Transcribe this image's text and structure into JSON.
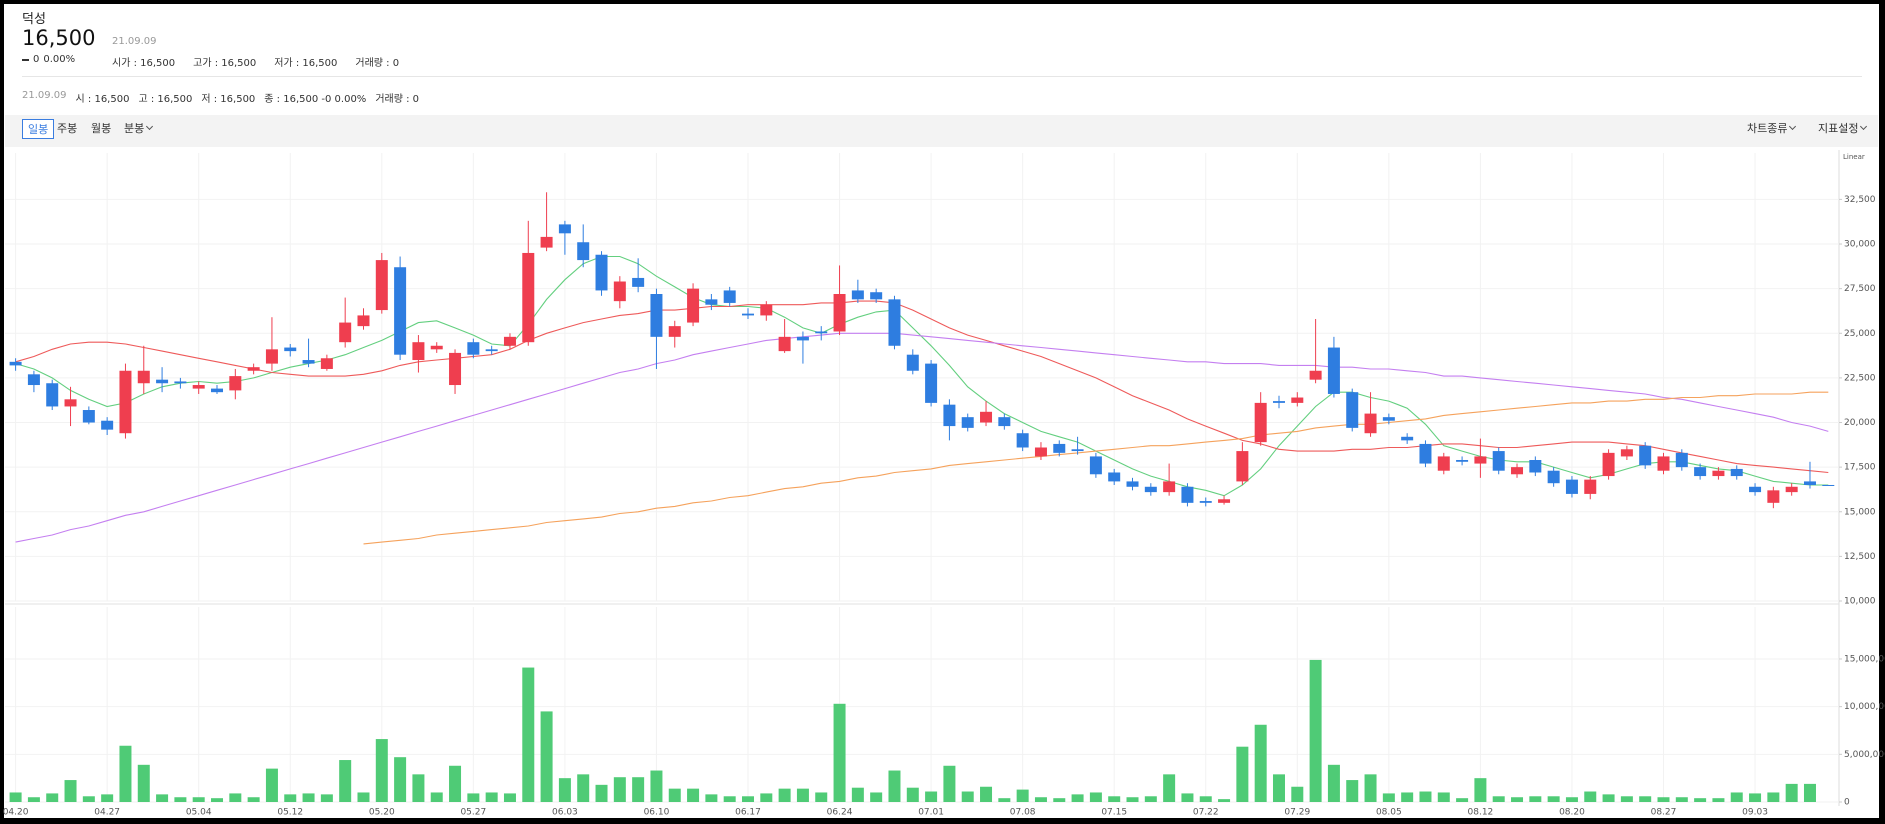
{
  "header": {
    "name": "덕성",
    "price": "16,500",
    "date": "21.09.09",
    "change": "0",
    "change_pct": "0.00%",
    "stats": [
      "시가 : 16,500",
      "고가 : 16,500",
      "저가 : 16,500",
      "거래량 : 0"
    ]
  },
  "info_bar": {
    "date": "21.09.09",
    "items": [
      "시 : 16,500",
      "고 : 16,500",
      "저 : 16,500",
      "종 : 16,500 -0 0.00%",
      "거래량 : 0"
    ]
  },
  "toolbar": {
    "periods": [
      "일봉",
      "주봉",
      "월봉",
      "분봉"
    ],
    "selected": 0,
    "options": [
      "차트종류",
      "지표설정"
    ]
  },
  "chart_data": [
    {
      "type": "candlestick",
      "scale": "Linear",
      "up_color": "#ef3e4f",
      "down_color": "#2e7de0",
      "grid": true,
      "categories": [
        "04.20",
        null,
        null,
        null,
        null,
        "04.27",
        null,
        null,
        null,
        null,
        "05.04",
        null,
        null,
        null,
        null,
        "05.12",
        null,
        null,
        null,
        null,
        "05.20",
        null,
        null,
        null,
        null,
        "05.27",
        null,
        null,
        null,
        null,
        "06.03",
        null,
        null,
        null,
        null,
        "06.10",
        null,
        null,
        null,
        null,
        "06.17",
        null,
        null,
        null,
        null,
        "06.24",
        null,
        null,
        null,
        null,
        "07.01",
        null,
        null,
        null,
        null,
        "07.08",
        null,
        null,
        null,
        null,
        "07.15",
        null,
        null,
        null,
        null,
        "07.22",
        null,
        null,
        null,
        null,
        "07.29",
        null,
        null,
        null,
        null,
        "08.05",
        null,
        null,
        null,
        null,
        "08.12",
        null,
        null,
        null,
        null,
        "08.20",
        null,
        null,
        null,
        null,
        "08.27",
        null,
        null,
        null,
        null,
        "09.03",
        null,
        null,
        null,
        null
      ],
      "open": [
        23400,
        22700,
        22200,
        20900,
        20700,
        20100,
        19400,
        22200,
        22400,
        22300,
        21900,
        21900,
        21800,
        22900,
        23300,
        24200,
        23500,
        23000,
        24500,
        25400,
        26300,
        28700,
        23500,
        24100,
        22100,
        24500,
        24100,
        24300,
        24500,
        29800,
        31100,
        30100,
        29400,
        26800,
        28100,
        27200,
        24800,
        25600,
        26900,
        27400,
        26100,
        26000,
        24000,
        24800,
        25100,
        25100,
        27400,
        27300,
        26900,
        23800,
        23300,
        21000,
        20300,
        20000,
        20300,
        19400,
        18100,
        18800,
        18500,
        18100,
        17200,
        16700,
        16400,
        16100,
        16400,
        15600,
        15500,
        16700,
        18900,
        21200,
        21100,
        22400,
        24200,
        21700,
        19400,
        20300,
        19200,
        18800,
        17300,
        17900,
        17700,
        18400,
        17100,
        17900,
        17300,
        16800,
        16000,
        17000,
        18100,
        18700,
        17300,
        18300,
        17500,
        17000,
        17400,
        16400,
        15500,
        16100,
        16700,
        16500
      ],
      "high": [
        23600,
        22900,
        22400,
        22000,
        20900,
        20300,
        23300,
        24300,
        23100,
        22500,
        22300,
        22100,
        23000,
        23300,
        25900,
        24400,
        24700,
        23800,
        27000,
        26400,
        29500,
        29300,
        24900,
        24500,
        24100,
        24700,
        24300,
        25000,
        31300,
        32900,
        31300,
        31100,
        29600,
        28200,
        29200,
        27500,
        25700,
        27800,
        27200,
        27600,
        26400,
        26800,
        25800,
        25100,
        25400,
        28800,
        28000,
        27500,
        27100,
        24100,
        23500,
        21300,
        20500,
        21200,
        20500,
        19600,
        18900,
        19000,
        19200,
        18300,
        17400,
        16900,
        16600,
        17700,
        16600,
        15800,
        15900,
        18900,
        21700,
        21500,
        21700,
        25800,
        24800,
        21900,
        21700,
        20500,
        19400,
        19000,
        18300,
        18100,
        19100,
        18600,
        17700,
        18100,
        17500,
        17000,
        17000,
        18500,
        18700,
        18900,
        18300,
        18500,
        17700,
        17500,
        17600,
        16600,
        16400,
        16600,
        17800,
        16500
      ],
      "low": [
        22900,
        21700,
        20700,
        19800,
        19900,
        19300,
        19100,
        21600,
        21700,
        21900,
        21600,
        21600,
        21300,
        22700,
        22900,
        23700,
        23100,
        22900,
        24200,
        25200,
        26100,
        23500,
        22800,
        23900,
        21600,
        23600,
        23800,
        24100,
        24300,
        29600,
        29400,
        28700,
        27100,
        26400,
        27300,
        23000,
        24200,
        25400,
        26300,
        26500,
        25800,
        25700,
        23900,
        23300,
        24600,
        24900,
        26700,
        26700,
        24100,
        22700,
        20900,
        19000,
        19500,
        19800,
        19600,
        18400,
        17900,
        18100,
        18200,
        16900,
        16500,
        16200,
        15900,
        15900,
        15300,
        15300,
        15400,
        16500,
        18700,
        20800,
        20900,
        22200,
        21400,
        19500,
        19200,
        19900,
        18800,
        17500,
        17100,
        17600,
        16900,
        17100,
        16900,
        17000,
        16400,
        15800,
        15700,
        16800,
        17900,
        17400,
        17100,
        17300,
        16800,
        16800,
        16800,
        15900,
        15200,
        15900,
        16300,
        16500
      ],
      "close": [
        23200,
        22100,
        20900,
        21300,
        20000,
        19600,
        22900,
        22900,
        22200,
        22200,
        22100,
        21700,
        22600,
        23100,
        24100,
        24000,
        23300,
        23600,
        25600,
        26000,
        29100,
        23800,
        24500,
        24300,
        23900,
        23800,
        24000,
        24800,
        29500,
        30400,
        30600,
        29100,
        27400,
        27900,
        27600,
        24800,
        25400,
        27500,
        26600,
        26700,
        26000,
        26600,
        24800,
        24600,
        25000,
        27200,
        26900,
        26900,
        24300,
        22900,
        21100,
        19800,
        19700,
        20600,
        19800,
        18600,
        18600,
        18300,
        18400,
        17100,
        16700,
        16400,
        16100,
        16700,
        15500,
        15500,
        15700,
        18400,
        21100,
        21100,
        21400,
        22900,
        21600,
        19700,
        20500,
        20100,
        19000,
        17700,
        18100,
        17800,
        18100,
        17300,
        17500,
        17200,
        16600,
        16000,
        16800,
        18300,
        18500,
        17600,
        18100,
        17500,
        17000,
        17300,
        17000,
        16100,
        16200,
        16400,
        16500,
        16500
      ],
      "series": [
        {
          "color": "#63cf7f",
          "values": [
            23300,
            23000,
            22500,
            21800,
            21300,
            20900,
            21100,
            21600,
            22000,
            22200,
            22300,
            22200,
            22300,
            22500,
            22800,
            23100,
            23300,
            23500,
            23800,
            24200,
            24600,
            25100,
            25600,
            25700,
            25300,
            24900,
            24400,
            24300,
            25500,
            26900,
            28000,
            28900,
            29300,
            29300,
            28900,
            28200,
            27600,
            27000,
            26600,
            26500,
            26500,
            26400,
            25900,
            25300,
            25000,
            25500,
            25900,
            26200,
            26300,
            25300,
            24300,
            23200,
            22000,
            21200,
            20500,
            20000,
            19500,
            19200,
            18900,
            18400,
            17900,
            17400,
            17000,
            16700,
            16400,
            16200,
            15900,
            16500,
            17400,
            18700,
            19800,
            20900,
            21700,
            21700,
            21400,
            21200,
            20800,
            19900,
            18700,
            18400,
            18100,
            17900,
            17800,
            17800,
            17500,
            17200,
            16900,
            17100,
            17400,
            17700,
            17800,
            17800,
            17600,
            17400,
            17300,
            17000,
            16700,
            16600,
            16500,
            16500
          ]
        },
        {
          "color": "#ee5a5a",
          "values": [
            23400,
            23700,
            24100,
            24400,
            24500,
            24500,
            24400,
            24200,
            24000,
            23800,
            23600,
            23400,
            23200,
            23000,
            22800,
            22700,
            22600,
            22600,
            22600,
            22700,
            22900,
            23200,
            23400,
            23500,
            23600,
            23700,
            23800,
            24100,
            24600,
            25000,
            25300,
            25600,
            25800,
            26000,
            26100,
            26300,
            26300,
            26400,
            26500,
            26500,
            26600,
            26600,
            26600,
            26600,
            26700,
            26700,
            26800,
            26800,
            26700,
            26300,
            25800,
            25300,
            24900,
            24600,
            24300,
            24000,
            23700,
            23300,
            22900,
            22500,
            22000,
            21500,
            21100,
            20700,
            20200,
            19800,
            19400,
            19000,
            18800,
            18500,
            18400,
            18400,
            18400,
            18500,
            18500,
            18600,
            18600,
            18700,
            18800,
            18800,
            18700,
            18600,
            18600,
            18700,
            18800,
            18900,
            18900,
            18900,
            18800,
            18700,
            18500,
            18300,
            18100,
            17900,
            17700,
            17600,
            17500,
            17400,
            17300,
            17200
          ]
        },
        {
          "color": "#c47ff0",
          "values": [
            13300,
            13500,
            13700,
            14000,
            14200,
            14500,
            14800,
            15000,
            15300,
            15600,
            15900,
            16200,
            16500,
            16800,
            17100,
            17400,
            17700,
            18000,
            18300,
            18600,
            18900,
            19200,
            19500,
            19800,
            20100,
            20400,
            20700,
            21000,
            21300,
            21600,
            21900,
            22200,
            22500,
            22800,
            23000,
            23300,
            23500,
            23800,
            24000,
            24200,
            24400,
            24600,
            24700,
            24800,
            24900,
            25000,
            25000,
            25000,
            25000,
            24900,
            24800,
            24700,
            24600,
            24500,
            24400,
            24300,
            24200,
            24100,
            24000,
            23900,
            23800,
            23700,
            23600,
            23500,
            23400,
            23400,
            23300,
            23300,
            23300,
            23200,
            23200,
            23200,
            23100,
            23100,
            23000,
            23000,
            22900,
            22800,
            22600,
            22600,
            22500,
            22400,
            22300,
            22200,
            22100,
            22000,
            21900,
            21800,
            21700,
            21600,
            21400,
            21300,
            21100,
            20900,
            20700,
            20500,
            20300,
            20000,
            19800,
            19500
          ]
        },
        {
          "color": "#f5a25c",
          "values": [
            null,
            null,
            null,
            null,
            null,
            null,
            null,
            null,
            null,
            null,
            null,
            null,
            null,
            null,
            null,
            null,
            null,
            null,
            null,
            13200,
            13300,
            13400,
            13500,
            13700,
            13800,
            13900,
            14000,
            14100,
            14200,
            14400,
            14500,
            14600,
            14700,
            14900,
            15000,
            15200,
            15300,
            15500,
            15600,
            15800,
            15900,
            16100,
            16300,
            16400,
            16600,
            16700,
            16900,
            17000,
            17200,
            17300,
            17400,
            17600,
            17700,
            17800,
            17900,
            18000,
            18100,
            18200,
            18300,
            18400,
            18500,
            18600,
            18700,
            18700,
            18800,
            18900,
            19000,
            19100,
            19300,
            19400,
            19500,
            19700,
            19800,
            19900,
            19900,
            20000,
            20100,
            20200,
            20400,
            20500,
            20600,
            20700,
            20800,
            20900,
            21000,
            21100,
            21100,
            21200,
            21200,
            21300,
            21300,
            21400,
            21400,
            21500,
            21500,
            21600,
            21600,
            21600,
            21700,
            21700
          ]
        }
      ],
      "ylim": [
        10000,
        35100
      ],
      "yticks": [
        {
          "value": 10000,
          "label": "10,000"
        },
        {
          "value": 12500,
          "label": "12,500"
        },
        {
          "value": 15000,
          "label": "15,000"
        },
        {
          "value": 17500,
          "label": "17,500"
        },
        {
          "value": 20000,
          "label": "20,000"
        },
        {
          "value": 22500,
          "label": "22,500"
        },
        {
          "value": 25000,
          "label": "25,000"
        },
        {
          "value": 27500,
          "label": "27,500"
        },
        {
          "value": 30000,
          "label": "30,000"
        },
        {
          "value": 32500,
          "label": "32,500"
        }
      ]
    },
    {
      "type": "bar",
      "color": "#4fcb76",
      "grid": true,
      "values": [
        1000000,
        500000,
        900000,
        2300000,
        600000,
        800000,
        5900000,
        3900000,
        800000,
        500000,
        500000,
        400000,
        900000,
        500000,
        3500000,
        800000,
        900000,
        800000,
        4400000,
        1000000,
        6600000,
        4700000,
        2900000,
        1000000,
        3800000,
        900000,
        1000000,
        900000,
        14100000,
        9500000,
        2500000,
        2900000,
        1800000,
        2600000,
        2600000,
        3300000,
        1400000,
        1400000,
        800000,
        600000,
        600000,
        900000,
        1400000,
        1400000,
        1000000,
        10300000,
        1500000,
        1000000,
        3300000,
        1500000,
        1100000,
        3800000,
        1100000,
        1600000,
        400000,
        1300000,
        500000,
        400000,
        800000,
        1000000,
        600000,
        500000,
        600000,
        2900000,
        900000,
        600000,
        300000,
        5800000,
        8100000,
        2900000,
        1600000,
        14900000,
        3900000,
        2300000,
        2900000,
        900000,
        1000000,
        1100000,
        1000000,
        400000,
        2500000,
        600000,
        500000,
        600000,
        600000,
        500000,
        1100000,
        800000,
        600000,
        600000,
        500000,
        500000,
        400000,
        400000,
        1000000,
        900000,
        1000000,
        1900000,
        1900000,
        0
      ],
      "ylim": [
        0,
        20450000
      ],
      "yticks": [
        0,
        {
          "value": 5000000,
          "label": "5,000,000"
        },
        {
          "value": 10000000,
          "label": "10,000,000"
        },
        {
          "value": 15000000,
          "label": "15,000,000"
        }
      ]
    }
  ]
}
